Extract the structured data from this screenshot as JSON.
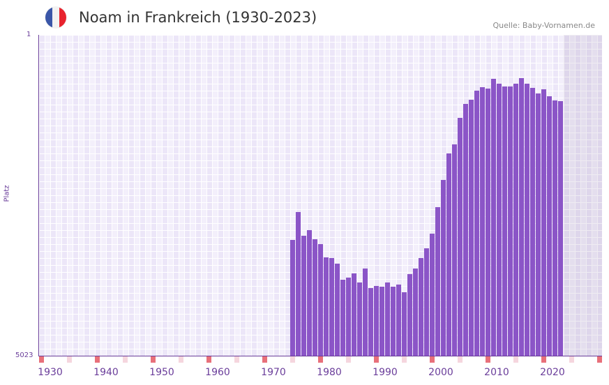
{
  "header": {
    "title": "Noam in Frankreich (1930-2023)",
    "source": "Quelle: Baby-Vornamen.de",
    "flag_colors": [
      "#3a56a8",
      "#f2f2f2",
      "#e8232e"
    ]
  },
  "colors": {
    "bar": "#8b55c7",
    "axis": "#6a3d9a",
    "marker_red": "#e8707a",
    "marker_pink": "#f5d6de"
  },
  "chart_data": {
    "type": "bar",
    "title": "Noam in Frankreich (1930-2023)",
    "xlabel": "",
    "ylabel": "Platz",
    "ylim": [
      5023,
      1
    ],
    "y_ticks": [
      "1",
      "5023"
    ],
    "x_ticks": [
      "1930",
      "1940",
      "1950",
      "1960",
      "1970",
      "1980",
      "1990",
      "2000",
      "2010",
      "2020"
    ],
    "x_range": [
      1928,
      2028
    ],
    "grid": true,
    "years": [
      1973,
      1974,
      1975,
      1976,
      1977,
      1978,
      1979,
      1980,
      1981,
      1982,
      1983,
      1984,
      1985,
      1986,
      1987,
      1988,
      1989,
      1990,
      1991,
      1992,
      1993,
      1994,
      1995,
      1996,
      1997,
      1998,
      1999,
      2000,
      2001,
      2002,
      2003,
      2004,
      2005,
      2006,
      2007,
      2008,
      2009,
      2010,
      2011,
      2012,
      2013,
      2014,
      2015,
      2016,
      2017,
      2018,
      2019,
      2020,
      2021
    ],
    "values": [
      3211,
      2774,
      3145,
      3058,
      3200,
      3276,
      3484,
      3494,
      3582,
      3833,
      3800,
      3735,
      3877,
      3658,
      3964,
      3931,
      3942,
      3877,
      3942,
      3909,
      4029,
      3746,
      3658,
      3494,
      3342,
      3112,
      2698,
      2272,
      1857,
      1715,
      1300,
      1082,
      1016,
      874,
      820,
      842,
      689,
      765,
      809,
      809,
      765,
      678,
      765,
      831,
      918,
      853,
      962,
      1027,
      1038
    ]
  }
}
